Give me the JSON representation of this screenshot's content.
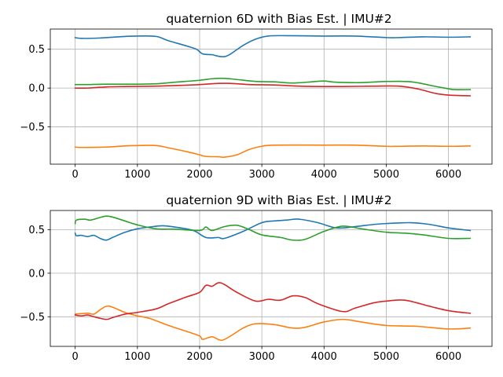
{
  "colors": {
    "series": [
      "#1f77b4",
      "#ff7f0e",
      "#2ca02c",
      "#d62728"
    ],
    "grid": "#b0b0b0",
    "axes": "#000000"
  },
  "chart_data": [
    {
      "type": "line",
      "title": "quaternion 6D with Bias Est. | IMU#2",
      "xlabel": "",
      "ylabel": "",
      "xlim": [
        -400,
        6700
      ],
      "ylim": [
        -0.98,
        0.76
      ],
      "xticks": [
        0,
        1000,
        2000,
        3000,
        4000,
        5000,
        6000
      ],
      "yticks": [
        -0.5,
        0.0,
        0.5
      ],
      "xtick_labels": [
        "0",
        "1000",
        "2000",
        "3000",
        "4000",
        "5000",
        "6000"
      ],
      "ytick_labels": [
        "−0.5",
        "0.0",
        "0.5"
      ],
      "grid": true,
      "legend": "none",
      "series": [
        {
          "color": "#1f77b4",
          "points": [
            [
              0,
              0.65
            ],
            [
              100,
              0.64
            ],
            [
              400,
              0.645
            ],
            [
              800,
              0.665
            ],
            [
              1000,
              0.67
            ],
            [
              1300,
              0.665
            ],
            [
              1500,
              0.61
            ],
            [
              1800,
              0.54
            ],
            [
              1950,
              0.5
            ],
            [
              2050,
              0.44
            ],
            [
              2200,
              0.43
            ],
            [
              2300,
              0.41
            ],
            [
              2400,
              0.405
            ],
            [
              2500,
              0.44
            ],
            [
              2700,
              0.55
            ],
            [
              2900,
              0.63
            ],
            [
              3100,
              0.67
            ],
            [
              3400,
              0.675
            ],
            [
              4000,
              0.67
            ],
            [
              4500,
              0.67
            ],
            [
              5000,
              0.65
            ],
            [
              5200,
              0.65
            ],
            [
              5600,
              0.66
            ],
            [
              6000,
              0.655
            ],
            [
              6350,
              0.66
            ]
          ]
        },
        {
          "color": "#ff7f0e",
          "points": [
            [
              0,
              -0.76
            ],
            [
              100,
              -0.765
            ],
            [
              500,
              -0.76
            ],
            [
              800,
              -0.745
            ],
            [
              1000,
              -0.74
            ],
            [
              1300,
              -0.74
            ],
            [
              1500,
              -0.77
            ],
            [
              1800,
              -0.82
            ],
            [
              2000,
              -0.86
            ],
            [
              2100,
              -0.88
            ],
            [
              2300,
              -0.885
            ],
            [
              2400,
              -0.89
            ],
            [
              2600,
              -0.86
            ],
            [
              2800,
              -0.79
            ],
            [
              3000,
              -0.75
            ],
            [
              3200,
              -0.735
            ],
            [
              4000,
              -0.735
            ],
            [
              4500,
              -0.735
            ],
            [
              5000,
              -0.75
            ],
            [
              5200,
              -0.75
            ],
            [
              5600,
              -0.745
            ],
            [
              6000,
              -0.75
            ],
            [
              6350,
              -0.745
            ]
          ]
        },
        {
          "color": "#2ca02c",
          "points": [
            [
              0,
              0.045
            ],
            [
              200,
              0.045
            ],
            [
              500,
              0.05
            ],
            [
              1000,
              0.05
            ],
            [
              1300,
              0.055
            ],
            [
              1600,
              0.075
            ],
            [
              2000,
              0.1
            ],
            [
              2200,
              0.12
            ],
            [
              2400,
              0.125
            ],
            [
              2600,
              0.11
            ],
            [
              2900,
              0.085
            ],
            [
              3200,
              0.08
            ],
            [
              3500,
              0.065
            ],
            [
              3800,
              0.08
            ],
            [
              4000,
              0.09
            ],
            [
              4200,
              0.075
            ],
            [
              4600,
              0.07
            ],
            [
              5000,
              0.085
            ],
            [
              5400,
              0.08
            ],
            [
              5800,
              0.02
            ],
            [
              6000,
              -0.01
            ],
            [
              6100,
              -0.02
            ],
            [
              6350,
              -0.02
            ]
          ]
        },
        {
          "color": "#d62728",
          "points": [
            [
              0,
              0.0
            ],
            [
              200,
              0.0
            ],
            [
              500,
              0.015
            ],
            [
              800,
              0.02
            ],
            [
              1300,
              0.025
            ],
            [
              1700,
              0.035
            ],
            [
              2000,
              0.045
            ],
            [
              2300,
              0.06
            ],
            [
              2500,
              0.06
            ],
            [
              2800,
              0.045
            ],
            [
              3200,
              0.04
            ],
            [
              3600,
              0.025
            ],
            [
              4000,
              0.02
            ],
            [
              4300,
              0.02
            ],
            [
              4800,
              0.025
            ],
            [
              5200,
              0.025
            ],
            [
              5500,
              -0.01
            ],
            [
              5800,
              -0.07
            ],
            [
              6000,
              -0.09
            ],
            [
              6350,
              -0.1
            ]
          ]
        }
      ]
    },
    {
      "type": "line",
      "title": "quaternion 9D with Bias Est.  | IMU#2",
      "xlabel": "",
      "ylabel": "",
      "xlim": [
        -400,
        6700
      ],
      "ylim": [
        -0.84,
        0.72
      ],
      "xticks": [
        0,
        1000,
        2000,
        3000,
        4000,
        5000,
        6000
      ],
      "yticks": [
        -0.5,
        0.0,
        0.5
      ],
      "xtick_labels": [
        "0",
        "1000",
        "2000",
        "3000",
        "4000",
        "5000",
        "6000"
      ],
      "ytick_labels": [
        "−0.5",
        "0.0",
        "0.5"
      ],
      "grid": true,
      "legend": "none",
      "series": [
        {
          "color": "#1f77b4",
          "points": [
            [
              0,
              0.46
            ],
            [
              20,
              0.43
            ],
            [
              100,
              0.435
            ],
            [
              200,
              0.42
            ],
            [
              300,
              0.435
            ],
            [
              400,
              0.4
            ],
            [
              500,
              0.38
            ],
            [
              600,
              0.41
            ],
            [
              800,
              0.47
            ],
            [
              1000,
              0.51
            ],
            [
              1200,
              0.53
            ],
            [
              1400,
              0.545
            ],
            [
              1600,
              0.53
            ],
            [
              1900,
              0.49
            ],
            [
              2100,
              0.41
            ],
            [
              2300,
              0.41
            ],
            [
              2400,
              0.4
            ],
            [
              2700,
              0.48
            ],
            [
              3000,
              0.58
            ],
            [
              3200,
              0.6
            ],
            [
              3400,
              0.61
            ],
            [
              3600,
              0.62
            ],
            [
              3900,
              0.58
            ],
            [
              4200,
              0.52
            ],
            [
              4500,
              0.535
            ],
            [
              4800,
              0.56
            ],
            [
              5000,
              0.57
            ],
            [
              5400,
              0.58
            ],
            [
              5700,
              0.56
            ],
            [
              6000,
              0.52
            ],
            [
              6350,
              0.49
            ]
          ]
        },
        {
          "color": "#ff7f0e",
          "points": [
            [
              0,
              -0.47
            ],
            [
              200,
              -0.46
            ],
            [
              300,
              -0.47
            ],
            [
              400,
              -0.42
            ],
            [
              500,
              -0.38
            ],
            [
              600,
              -0.39
            ],
            [
              800,
              -0.45
            ],
            [
              1000,
              -0.49
            ],
            [
              1200,
              -0.52
            ],
            [
              1500,
              -0.6
            ],
            [
              1800,
              -0.67
            ],
            [
              2000,
              -0.72
            ],
            [
              2050,
              -0.76
            ],
            [
              2200,
              -0.73
            ],
            [
              2350,
              -0.77
            ],
            [
              2500,
              -0.72
            ],
            [
              2700,
              -0.63
            ],
            [
              2900,
              -0.58
            ],
            [
              3200,
              -0.59
            ],
            [
              3500,
              -0.63
            ],
            [
              3700,
              -0.62
            ],
            [
              4000,
              -0.56
            ],
            [
              4300,
              -0.53
            ],
            [
              4600,
              -0.56
            ],
            [
              5000,
              -0.6
            ],
            [
              5500,
              -0.61
            ],
            [
              6000,
              -0.64
            ],
            [
              6350,
              -0.63
            ]
          ]
        },
        {
          "color": "#2ca02c",
          "points": [
            [
              0,
              0.57
            ],
            [
              20,
              0.61
            ],
            [
              150,
              0.62
            ],
            [
              250,
              0.61
            ],
            [
              400,
              0.64
            ],
            [
              500,
              0.655
            ],
            [
              600,
              0.645
            ],
            [
              800,
              0.6
            ],
            [
              1000,
              0.555
            ],
            [
              1300,
              0.51
            ],
            [
              1600,
              0.505
            ],
            [
              2000,
              0.49
            ],
            [
              2100,
              0.53
            ],
            [
              2200,
              0.49
            ],
            [
              2400,
              0.535
            ],
            [
              2600,
              0.55
            ],
            [
              2800,
              0.5
            ],
            [
              3000,
              0.44
            ],
            [
              3300,
              0.41
            ],
            [
              3500,
              0.38
            ],
            [
              3700,
              0.39
            ],
            [
              4000,
              0.48
            ],
            [
              4300,
              0.54
            ],
            [
              4600,
              0.51
            ],
            [
              5000,
              0.47
            ],
            [
              5300,
              0.46
            ],
            [
              5600,
              0.44
            ],
            [
              6000,
              0.4
            ],
            [
              6350,
              0.4
            ]
          ]
        },
        {
          "color": "#d62728",
          "points": [
            [
              0,
              -0.48
            ],
            [
              100,
              -0.49
            ],
            [
              200,
              -0.48
            ],
            [
              300,
              -0.5
            ],
            [
              500,
              -0.53
            ],
            [
              600,
              -0.51
            ],
            [
              800,
              -0.47
            ],
            [
              1000,
              -0.45
            ],
            [
              1300,
              -0.41
            ],
            [
              1500,
              -0.35
            ],
            [
              1800,
              -0.27
            ],
            [
              2000,
              -0.22
            ],
            [
              2100,
              -0.14
            ],
            [
              2200,
              -0.15
            ],
            [
              2300,
              -0.11
            ],
            [
              2400,
              -0.13
            ],
            [
              2600,
              -0.22
            ],
            [
              2900,
              -0.32
            ],
            [
              3100,
              -0.3
            ],
            [
              3300,
              -0.31
            ],
            [
              3500,
              -0.26
            ],
            [
              3700,
              -0.28
            ],
            [
              3900,
              -0.35
            ],
            [
              4300,
              -0.44
            ],
            [
              4500,
              -0.4
            ],
            [
              4800,
              -0.34
            ],
            [
              5000,
              -0.32
            ],
            [
              5300,
              -0.31
            ],
            [
              5700,
              -0.38
            ],
            [
              6000,
              -0.43
            ],
            [
              6350,
              -0.46
            ]
          ]
        }
      ]
    }
  ]
}
